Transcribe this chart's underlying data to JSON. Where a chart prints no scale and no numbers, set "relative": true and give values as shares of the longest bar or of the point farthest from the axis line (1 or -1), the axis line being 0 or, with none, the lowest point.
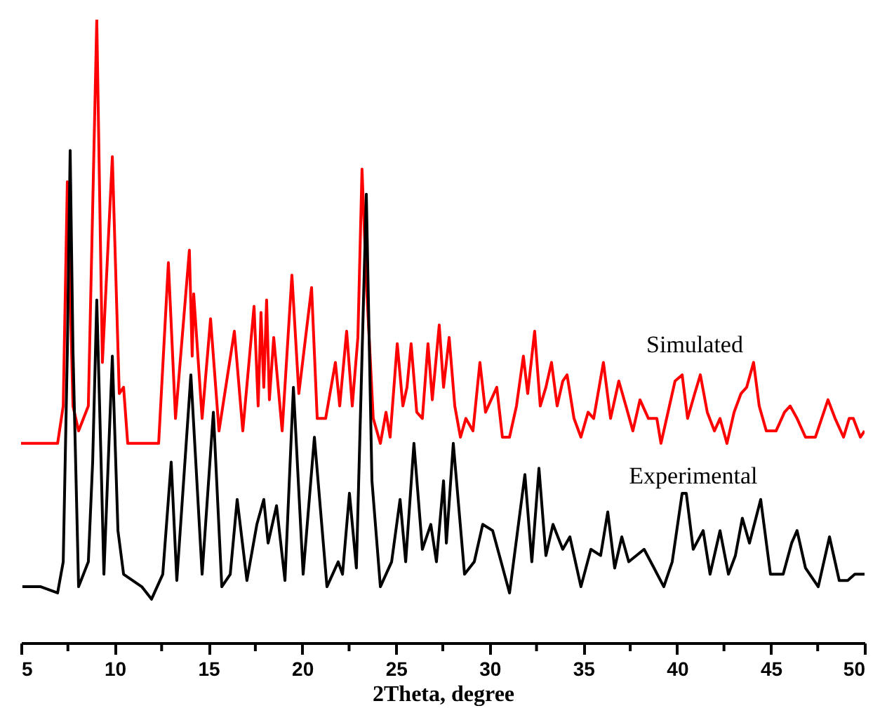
{
  "chart_data": {
    "type": "line",
    "relative": true,
    "xlabel": "2Theta, degree",
    "xlim": [
      5,
      50
    ],
    "xticks": [
      5,
      {
        "value": 7.5,
        "label": null
      },
      10,
      {
        "value": 12.5,
        "label": null
      },
      15,
      {
        "value": 17.5,
        "label": null
      },
      20,
      {
        "value": 22.5,
        "label": null
      },
      25,
      {
        "value": 27.5,
        "label": null
      },
      30,
      {
        "value": 32.5,
        "label": null
      },
      35,
      {
        "value": 37.5,
        "label": null
      },
      40,
      {
        "value": 42.5,
        "label": null
      },
      45,
      {
        "value": 47.5,
        "label": null
      },
      50
    ],
    "grid": false,
    "marker": "none",
    "line_style": "solid",
    "series": [
      {
        "name": "Simulated",
        "color": "#ff0000",
        "x": [
          5,
          6.95,
          7.25,
          7.47,
          7.77,
          8.07,
          8.59,
          9.04,
          9.34,
          9.87,
          10.24,
          10.47,
          10.69,
          12.34,
          12.86,
          13.24,
          13.98,
          14.13,
          14.21,
          14.66,
          15.11,
          15.56,
          16.38,
          16.83,
          17.43,
          17.65,
          17.8,
          17.95,
          18.1,
          18.25,
          18.48,
          18.93,
          19.45,
          19.82,
          20.5,
          20.8,
          21.25,
          21.77,
          22.0,
          22.37,
          22.67,
          22.97,
          23.19,
          23.42,
          23.79,
          24.17,
          24.47,
          24.69,
          25.07,
          25.37,
          25.59,
          25.81,
          26.11,
          26.41,
          26.71,
          26.94,
          27.31,
          27.54,
          27.84,
          28.14,
          28.44,
          28.73,
          29.11,
          29.48,
          29.78,
          30.08,
          30.38,
          30.68,
          31.06,
          31.43,
          31.8,
          32.03,
          32.4,
          32.7,
          33.0,
          33.3,
          33.6,
          33.9,
          34.13,
          34.5,
          34.87,
          35.25,
          35.55,
          36.07,
          36.45,
          36.89,
          37.27,
          37.64,
          38.02,
          38.47,
          38.92,
          39.14,
          39.59,
          39.89,
          40.27,
          40.56,
          40.94,
          41.24,
          41.61,
          41.99,
          42.29,
          42.66,
          43.04,
          43.41,
          43.71,
          44.08,
          44.38,
          44.76,
          45.28,
          45.73,
          46.03,
          46.4,
          46.85,
          47.38,
          48.05,
          48.43,
          48.88,
          49.18,
          49.4,
          49.78,
          50.0
        ],
        "values": [
          0.32,
          0.32,
          0.38,
          0.74,
          0.38,
          0.34,
          0.38,
          1.0,
          0.45,
          0.78,
          0.4,
          0.41,
          0.32,
          0.32,
          0.61,
          0.36,
          0.63,
          0.46,
          0.56,
          0.36,
          0.52,
          0.34,
          0.5,
          0.34,
          0.54,
          0.38,
          0.53,
          0.41,
          0.55,
          0.39,
          0.49,
          0.34,
          0.59,
          0.4,
          0.57,
          0.36,
          0.36,
          0.45,
          0.38,
          0.5,
          0.38,
          0.49,
          0.76,
          0.58,
          0.36,
          0.32,
          0.37,
          0.33,
          0.48,
          0.38,
          0.41,
          0.48,
          0.37,
          0.36,
          0.48,
          0.39,
          0.51,
          0.41,
          0.49,
          0.38,
          0.33,
          0.36,
          0.34,
          0.45,
          0.37,
          0.39,
          0.41,
          0.33,
          0.33,
          0.38,
          0.46,
          0.4,
          0.5,
          0.38,
          0.41,
          0.45,
          0.38,
          0.42,
          0.43,
          0.36,
          0.33,
          0.37,
          0.36,
          0.45,
          0.36,
          0.42,
          0.38,
          0.34,
          0.39,
          0.36,
          0.36,
          0.32,
          0.38,
          0.42,
          0.43,
          0.36,
          0.4,
          0.43,
          0.37,
          0.34,
          0.36,
          0.32,
          0.37,
          0.4,
          0.41,
          0.45,
          0.38,
          0.34,
          0.34,
          0.37,
          0.38,
          0.36,
          0.33,
          0.33,
          0.39,
          0.36,
          0.33,
          0.36,
          0.36,
          0.33,
          0.34
        ]
      },
      {
        "name": "Experimental",
        "color": "#000000",
        "x": [
          5.07,
          6.05,
          6.95,
          7.25,
          7.47,
          7.62,
          7.77,
          8.07,
          8.59,
          8.82,
          9.04,
          9.27,
          9.42,
          9.87,
          10.17,
          10.47,
          11.44,
          11.96,
          12.56,
          13.01,
          13.31,
          14.06,
          14.66,
          15.26,
          15.71,
          16.16,
          16.53,
          17.05,
          17.58,
          17.95,
          18.18,
          18.63,
          19.08,
          19.53,
          20.05,
          20.65,
          21.32,
          21.92,
          22.15,
          22.52,
          22.89,
          23.42,
          23.72,
          24.17,
          24.77,
          25.22,
          25.52,
          25.96,
          26.41,
          26.86,
          27.16,
          27.54,
          27.69,
          28.06,
          28.66,
          29.18,
          29.63,
          30.16,
          30.61,
          31.06,
          31.88,
          32.25,
          32.63,
          33.0,
          33.38,
          33.9,
          34.28,
          34.87,
          35.4,
          35.92,
          36.3,
          36.67,
          37.05,
          37.42,
          38.24,
          38.77,
          39.29,
          39.74,
          40.27,
          40.49,
          40.86,
          41.39,
          41.76,
          42.29,
          42.74,
          43.11,
          43.48,
          43.86,
          44.46,
          44.98,
          45.66,
          46.11,
          46.4,
          46.85,
          47.53,
          48.13,
          48.65,
          49.1,
          49.48,
          50.0
        ],
        "values": [
          0.09,
          0.09,
          0.08,
          0.13,
          0.47,
          0.79,
          0.47,
          0.09,
          0.13,
          0.29,
          0.55,
          0.29,
          0.11,
          0.46,
          0.18,
          0.11,
          0.09,
          0.07,
          0.11,
          0.29,
          0.1,
          0.43,
          0.11,
          0.37,
          0.09,
          0.11,
          0.23,
          0.1,
          0.19,
          0.23,
          0.16,
          0.22,
          0.1,
          0.41,
          0.11,
          0.33,
          0.09,
          0.13,
          0.11,
          0.24,
          0.12,
          0.72,
          0.26,
          0.09,
          0.13,
          0.23,
          0.13,
          0.32,
          0.15,
          0.19,
          0.13,
          0.26,
          0.16,
          0.32,
          0.11,
          0.13,
          0.19,
          0.18,
          0.13,
          0.08,
          0.27,
          0.13,
          0.28,
          0.14,
          0.19,
          0.15,
          0.17,
          0.09,
          0.15,
          0.14,
          0.21,
          0.12,
          0.17,
          0.13,
          0.15,
          0.12,
          0.09,
          0.13,
          0.24,
          0.24,
          0.15,
          0.18,
          0.11,
          0.18,
          0.11,
          0.14,
          0.2,
          0.16,
          0.23,
          0.11,
          0.11,
          0.16,
          0.18,
          0.12,
          0.09,
          0.17,
          0.1,
          0.1,
          0.11,
          0.11
        ]
      }
    ]
  }
}
